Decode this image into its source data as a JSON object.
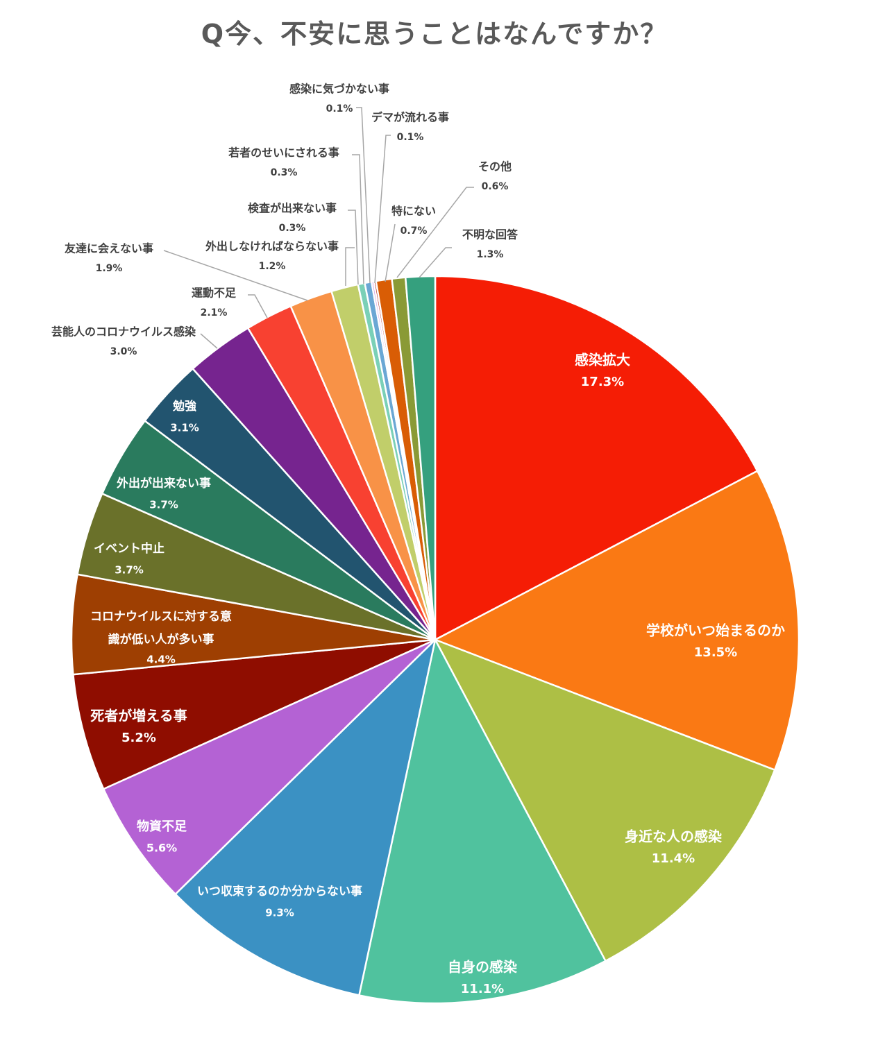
{
  "chart_data": {
    "type": "pie",
    "title": "Q今、不安に思うことはなんですか？",
    "slices": [
      {
        "label": "感染拡大",
        "value": 17.3,
        "value_label": "17.3%",
        "color": "#f51d05"
      },
      {
        "label": "学校がいつ始まるのか",
        "value": 13.5,
        "value_label": "13.5%",
        "color": "#fa7914"
      },
      {
        "label": "身近な人の感染",
        "value": 11.4,
        "value_label": "11.4%",
        "color": "#adbf45"
      },
      {
        "label": "自身の感染",
        "value": 11.1,
        "value_label": "11.1%",
        "color": "#50c29e"
      },
      {
        "label": "いつ収束するのか分からない事",
        "value": 9.3,
        "value_label": "9.3%",
        "color": "#3b91c3"
      },
      {
        "label": "物資不足",
        "value": 5.6,
        "value_label": "5.6%",
        "color": "#b462d4"
      },
      {
        "label": "死者が増える事",
        "value": 5.2,
        "value_label": "5.2%",
        "color": "#8f0d00"
      },
      {
        "label": "コロナウイルスに対する意識が低い人が多い事",
        "value": 4.4,
        "value_label": "4.4%",
        "color": "#9e3f02"
      },
      {
        "label": "イベント中止",
        "value": 3.7,
        "value_label": "3.7%",
        "color": "#6a712a"
      },
      {
        "label": "外出が出来ない事",
        "value": 3.7,
        "value_label": "3.7%",
        "color": "#2a7b5e"
      },
      {
        "label": "勉強",
        "value": 3.1,
        "value_label": "3.1%",
        "color": "#22546f"
      },
      {
        "label": "芸能人のコロナウイルス感染",
        "value": 3.0,
        "value_label": "3.0%",
        "color": "#76248f"
      },
      {
        "label": "運動不足",
        "value": 2.1,
        "value_label": "2.1%",
        "color": "#f84131"
      },
      {
        "label": "友達に会えない事",
        "value": 1.9,
        "value_label": "1.9%",
        "color": "#f89247"
      },
      {
        "label": "外出しなければならない事",
        "value": 1.2,
        "value_label": "1.2%",
        "color": "#c1ce6a"
      },
      {
        "label": "検査が出来ない事",
        "value": 0.3,
        "value_label": "0.3%",
        "color": "#7ad0b7"
      },
      {
        "label": "若者のせいにされる事",
        "value": 0.3,
        "value_label": "0.3%",
        "color": "#6aa7d4"
      },
      {
        "label": "感染に気づかない事",
        "value": 0.1,
        "value_label": "0.1%",
        "color": "#c88be0"
      },
      {
        "label": "デマが流れる事",
        "value": 0.1,
        "value_label": "0.1%",
        "color": "#b3261e"
      },
      {
        "label": "特にない",
        "value": 0.7,
        "value_label": "0.7%",
        "color": "#d95d05"
      },
      {
        "label": "その他",
        "value": 0.6,
        "value_label": "0.6%",
        "color": "#8a9a36"
      },
      {
        "label": "不明な回答",
        "value": 1.3,
        "value_label": "1.3%",
        "color": "#35a07e"
      }
    ],
    "legend": "none"
  }
}
